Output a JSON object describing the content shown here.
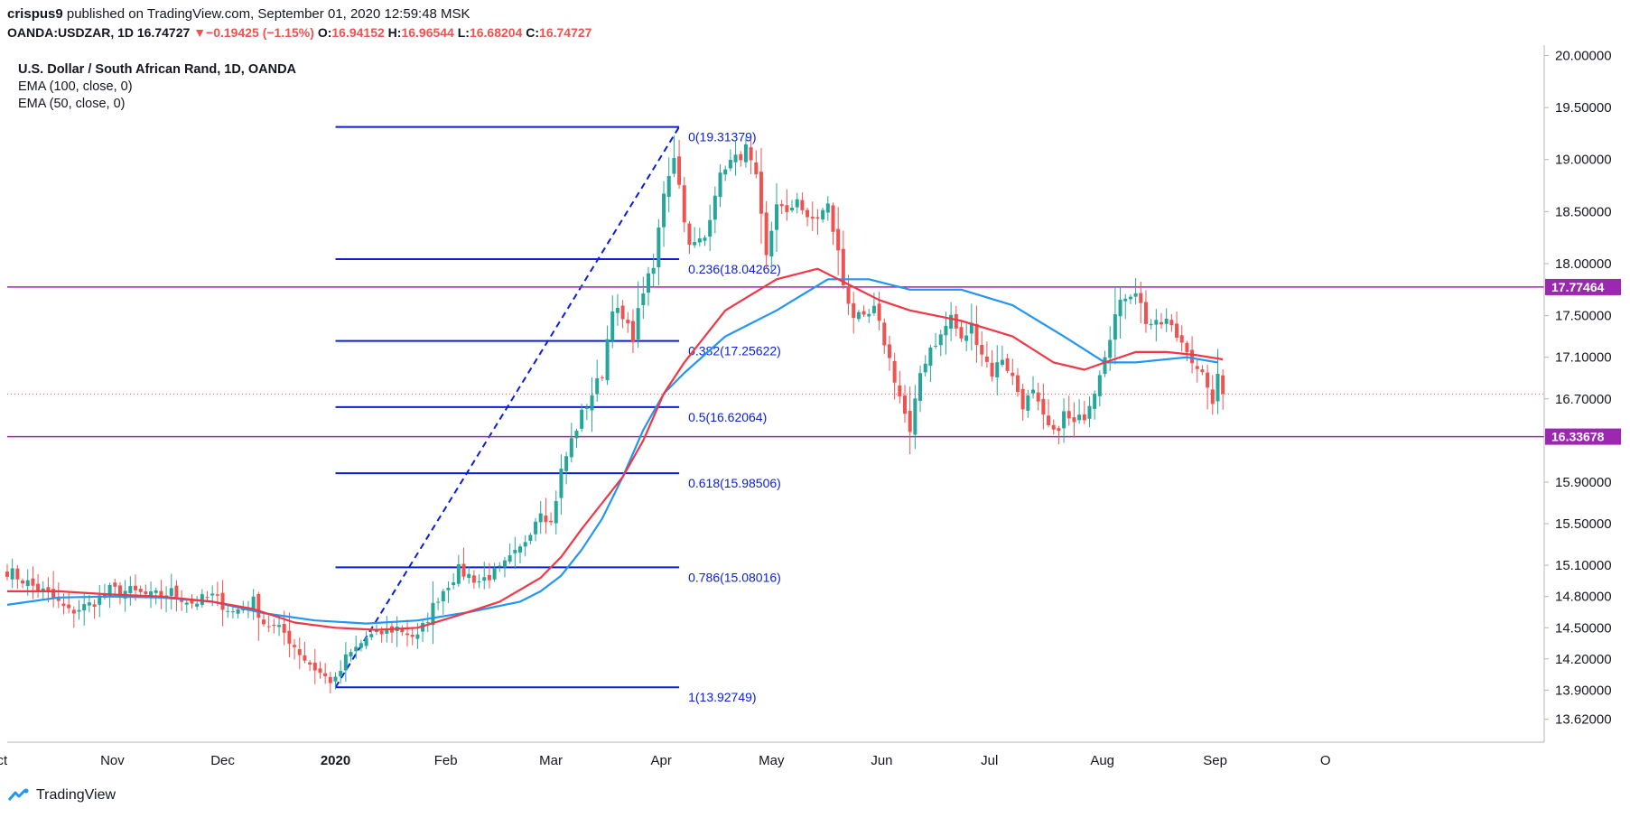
{
  "header": {
    "author": "crispus9",
    "published": "published on TradingView.com, September 01, 2020 12:59:48 MSK",
    "symbol": "OANDA:USDZAR, 1D",
    "last": "16.74727",
    "arrow": "▼",
    "change": "−0.19425 (−1.15%)",
    "o_label": "O:",
    "o": "16.94152",
    "h_label": "H:",
    "h": "16.96544",
    "l_label": "L:",
    "l": "16.68204",
    "c_label": "C:",
    "c": "16.74727"
  },
  "legend": {
    "title": "U.S. Dollar / South African Rand, 1D, OANDA",
    "ema100": "EMA (100, close, 0)",
    "ema50": "EMA (50, close, 0)"
  },
  "footer": {
    "brand": "TradingView"
  },
  "colors": {
    "up": "#26a69a",
    "down": "#ef5350",
    "ema100": "#2196f3",
    "ema50": "#f23645",
    "fib": "#0a1fd6",
    "hline": "#9c27b0",
    "grid": "#e0e3eb",
    "text": "#131722"
  },
  "chart_data": {
    "type": "candlestick",
    "ylim": [
      13.4,
      20.1
    ],
    "y_ticks": [
      "20.00000",
      "19.50000",
      "19.00000",
      "18.50000",
      "18.00000",
      "17.50000",
      "17.10000",
      "16.70000",
      "15.90000",
      "15.50000",
      "15.10000",
      "14.80000",
      "14.50000",
      "14.20000",
      "13.90000",
      "13.62000"
    ],
    "x_ticks": [
      {
        "label": "ct",
        "index": -1,
        "bold": false
      },
      {
        "label": "Nov",
        "index": 20.5,
        "bold": false
      },
      {
        "label": "Dec",
        "index": 42,
        "bold": false
      },
      {
        "label": "2020",
        "index": 64,
        "bold": true
      },
      {
        "label": "Feb",
        "index": 85.5,
        "bold": false
      },
      {
        "label": "Mar",
        "index": 106,
        "bold": false
      },
      {
        "label": "Apr",
        "index": 127.5,
        "bold": false
      },
      {
        "label": "May",
        "index": 149,
        "bold": false
      },
      {
        "label": "Jun",
        "index": 170.5,
        "bold": false
      },
      {
        "label": "Jul",
        "index": 191.5,
        "bold": false
      },
      {
        "label": "Aug",
        "index": 213.5,
        "bold": false
      },
      {
        "label": "Sep",
        "index": 235.5,
        "bold": false
      },
      {
        "label": "O",
        "index": 257,
        "bold": false
      }
    ],
    "last_price": 16.74727,
    "horizontal_levels": [
      {
        "price": 17.77464,
        "label": "17.77464"
      },
      {
        "price": 16.33678,
        "label": "16.33678"
      }
    ],
    "fibonacci": {
      "start_index": 64,
      "end_index": 131,
      "low": 13.92749,
      "high": 19.31379,
      "levels": [
        {
          "ratio": 0,
          "price": 19.31379,
          "label": "0(19.31379)"
        },
        {
          "ratio": 0.236,
          "price": 18.04262,
          "label": "0.236(18.04262)"
        },
        {
          "ratio": 0.382,
          "price": 17.25622,
          "label": "0.382(17.25622)"
        },
        {
          "ratio": 0.5,
          "price": 16.62064,
          "label": "0.5(16.62064)"
        },
        {
          "ratio": 0.618,
          "price": 15.98506,
          "label": "0.618(15.98506)"
        },
        {
          "ratio": 0.786,
          "price": 15.08016,
          "label": "0.786(15.08016)"
        },
        {
          "ratio": 1,
          "price": 13.92749,
          "label": "1(13.92749)"
        }
      ]
    },
    "close_keypoints": [
      [
        0,
        15.05
      ],
      [
        5,
        14.9
      ],
      [
        8,
        14.82
      ],
      [
        12,
        14.65
      ],
      [
        16,
        14.72
      ],
      [
        20,
        14.86
      ],
      [
        24,
        14.85
      ],
      [
        28,
        14.8
      ],
      [
        32,
        14.84
      ],
      [
        36,
        14.74
      ],
      [
        40,
        14.8
      ],
      [
        44,
        14.65
      ],
      [
        48,
        14.75
      ],
      [
        50,
        14.55
      ],
      [
        54,
        14.45
      ],
      [
        58,
        14.2
      ],
      [
        62,
        14.02
      ],
      [
        64,
        13.98
      ],
      [
        66,
        14.2
      ],
      [
        70,
        14.4
      ],
      [
        76,
        14.5
      ],
      [
        80,
        14.4
      ],
      [
        84,
        14.8
      ],
      [
        88,
        15.05
      ],
      [
        92,
        14.95
      ],
      [
        96,
        15.05
      ],
      [
        100,
        15.25
      ],
      [
        104,
        15.65
      ],
      [
        106,
        15.5
      ],
      [
        108,
        16.0
      ],
      [
        110,
        16.3
      ],
      [
        112,
        16.55
      ],
      [
        116,
        16.95
      ],
      [
        118,
        17.6
      ],
      [
        122,
        17.3
      ],
      [
        124,
        17.75
      ],
      [
        126,
        17.95
      ],
      [
        128,
        18.7
      ],
      [
        130,
        19.05
      ],
      [
        131,
        18.75
      ],
      [
        133,
        18.15
      ],
      [
        136,
        18.25
      ],
      [
        138,
        18.7
      ],
      [
        140,
        18.95
      ],
      [
        142,
        19.0
      ],
      [
        144,
        19.1
      ],
      [
        146,
        18.8
      ],
      [
        148,
        18.05
      ],
      [
        150,
        18.6
      ],
      [
        152,
        18.45
      ],
      [
        154,
        18.65
      ],
      [
        156,
        18.4
      ],
      [
        158,
        18.45
      ],
      [
        160,
        18.55
      ],
      [
        162,
        18.1
      ],
      [
        163,
        17.8
      ],
      [
        165,
        17.5
      ],
      [
        167,
        17.45
      ],
      [
        169,
        17.55
      ],
      [
        171,
        17.25
      ],
      [
        173,
        16.9
      ],
      [
        175,
        16.55
      ],
      [
        176,
        16.35
      ],
      [
        178,
        16.95
      ],
      [
        180,
        17.2
      ],
      [
        182,
        17.3
      ],
      [
        184,
        17.5
      ],
      [
        186,
        17.25
      ],
      [
        188,
        17.4
      ],
      [
        190,
        17.15
      ],
      [
        192,
        16.95
      ],
      [
        194,
        17.1
      ],
      [
        196,
        16.9
      ],
      [
        198,
        16.65
      ],
      [
        200,
        16.75
      ],
      [
        202,
        16.5
      ],
      [
        204,
        16.35
      ],
      [
        206,
        16.55
      ],
      [
        208,
        16.45
      ],
      [
        210,
        16.55
      ],
      [
        212,
        16.8
      ],
      [
        214,
        17.15
      ],
      [
        216,
        17.5
      ],
      [
        218,
        17.7
      ],
      [
        220,
        17.75
      ],
      [
        222,
        17.45
      ],
      [
        224,
        17.4
      ],
      [
        226,
        17.45
      ],
      [
        228,
        17.3
      ],
      [
        230,
        17.2
      ],
      [
        232,
        16.95
      ],
      [
        234,
        16.85
      ],
      [
        235,
        16.6
      ],
      [
        236,
        16.94
      ],
      [
        237,
        16.75
      ]
    ],
    "ema100_keypoints": [
      [
        0,
        14.72
      ],
      [
        10,
        14.79
      ],
      [
        20,
        14.8
      ],
      [
        30,
        14.79
      ],
      [
        40,
        14.75
      ],
      [
        50,
        14.64
      ],
      [
        60,
        14.57
      ],
      [
        70,
        14.54
      ],
      [
        80,
        14.57
      ],
      [
        90,
        14.65
      ],
      [
        100,
        14.75
      ],
      [
        104,
        14.85
      ],
      [
        108,
        15.0
      ],
      [
        112,
        15.25
      ],
      [
        116,
        15.55
      ],
      [
        120,
        15.95
      ],
      [
        124,
        16.4
      ],
      [
        128,
        16.75
      ],
      [
        132,
        16.95
      ],
      [
        140,
        17.3
      ],
      [
        150,
        17.55
      ],
      [
        160,
        17.85
      ],
      [
        168,
        17.85
      ],
      [
        176,
        17.75
      ],
      [
        186,
        17.75
      ],
      [
        196,
        17.6
      ],
      [
        206,
        17.3
      ],
      [
        214,
        17.05
      ],
      [
        220,
        17.05
      ],
      [
        230,
        17.1
      ],
      [
        236,
        17.05
      ]
    ],
    "ema50_keypoints": [
      [
        0,
        14.85
      ],
      [
        10,
        14.85
      ],
      [
        20,
        14.82
      ],
      [
        30,
        14.8
      ],
      [
        40,
        14.75
      ],
      [
        48,
        14.68
      ],
      [
        56,
        14.55
      ],
      [
        64,
        14.5
      ],
      [
        72,
        14.48
      ],
      [
        80,
        14.5
      ],
      [
        88,
        14.62
      ],
      [
        96,
        14.75
      ],
      [
        104,
        14.98
      ],
      [
        108,
        15.18
      ],
      [
        112,
        15.45
      ],
      [
        116,
        15.7
      ],
      [
        120,
        15.95
      ],
      [
        124,
        16.3
      ],
      [
        128,
        16.75
      ],
      [
        132,
        17.05
      ],
      [
        140,
        17.55
      ],
      [
        150,
        17.85
      ],
      [
        158,
        17.95
      ],
      [
        164,
        17.8
      ],
      [
        170,
        17.65
      ],
      [
        176,
        17.55
      ],
      [
        186,
        17.45
      ],
      [
        196,
        17.3
      ],
      [
        204,
        17.05
      ],
      [
        210,
        16.98
      ],
      [
        214,
        17.05
      ],
      [
        220,
        17.15
      ],
      [
        226,
        17.15
      ],
      [
        232,
        17.12
      ],
      [
        237,
        17.08
      ]
    ]
  }
}
